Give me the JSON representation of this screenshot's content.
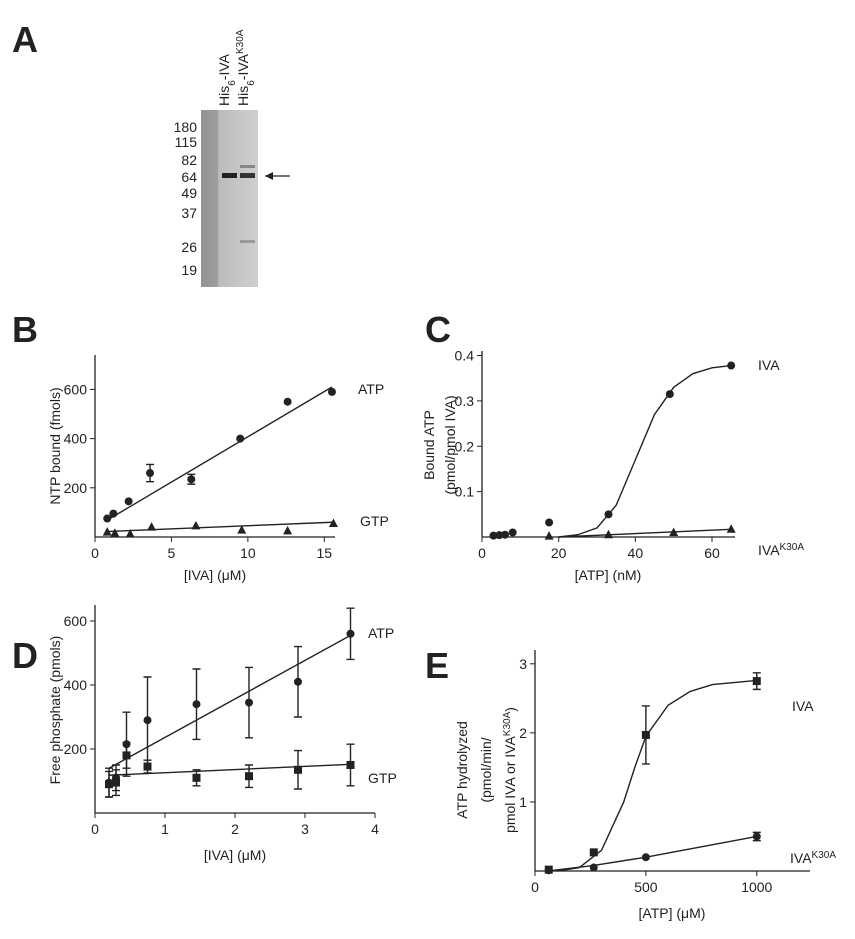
{
  "gel": {
    "label": "A",
    "lanes": [
      [
        "His",
        "6",
        "-IVA"
      ],
      [
        "His",
        "6",
        "-IVA",
        "K30A"
      ]
    ],
    "markers": [
      180,
      115,
      82,
      64,
      49,
      37,
      26,
      19
    ]
  },
  "chart_data": [
    {
      "type": "scatter",
      "panel": "B",
      "xlabel": "[IVA] (μM)",
      "ylabel": [
        [
          {
            "text": "NTP bound (fmols)"
          }
        ]
      ],
      "xlim": [
        0,
        15.7
      ],
      "ylim": [
        0,
        740
      ],
      "xticks": [
        0,
        5,
        10,
        15
      ],
      "yticks": [
        200,
        400,
        600
      ],
      "series": [
        {
          "name": "ATP",
          "marker": "circle",
          "color": "#222",
          "x": [
            0.8,
            1.2,
            2.2,
            3.6,
            6.3,
            9.5,
            12.6,
            15.5
          ],
          "values": [
            75,
            95,
            145,
            260,
            235,
            400,
            550,
            590
          ],
          "errors": [
            null,
            null,
            null,
            35,
            20,
            null,
            null,
            null
          ],
          "fit": {
            "x": [
              0.7,
              15.5
            ],
            "y": [
              65,
              610
            ]
          }
        },
        {
          "name": "GTP",
          "marker": "triangle",
          "color": "#222",
          "x": [
            0.8,
            1.3,
            2.3,
            3.7,
            6.6,
            9.6,
            12.6,
            15.6
          ],
          "values": [
            20,
            15,
            12,
            40,
            45,
            28,
            25,
            55
          ],
          "errors": [
            null,
            null,
            null,
            null,
            null,
            null,
            null,
            null
          ],
          "fit": {
            "x": [
              0.7,
              15.5
            ],
            "y": [
              22,
              60
            ]
          }
        }
      ]
    },
    {
      "type": "scatter",
      "panel": "C",
      "xlabel": "[ATP] (nM)",
      "ylabel": [
        [
          {
            "text": "Bound ATP"
          }
        ],
        [
          {
            "text": "(pmol/pmol IVA)"
          }
        ]
      ],
      "xlim": [
        0,
        66
      ],
      "ylim": [
        0,
        0.41
      ],
      "xticks": [
        0,
        20,
        40,
        60
      ],
      "yticks": [
        0.1,
        0.2,
        0.3,
        0.4
      ],
      "series": [
        {
          "name": "IVA",
          "marker": "circle",
          "color": "#222",
          "x": [
            3,
            4.5,
            6,
            8,
            17.5,
            33,
            49,
            65
          ],
          "values": [
            0.003,
            0.004,
            0.005,
            0.01,
            0.032,
            0.05,
            0.315,
            0.378
          ],
          "errors": [
            null,
            null,
            null,
            null,
            null,
            null,
            null,
            null
          ],
          "fit": {
            "x": [
              20,
              25,
              30,
              35,
              40,
              45,
              50,
              55,
              60,
              65
            ],
            "y": [
              0,
              0.005,
              0.02,
              0.07,
              0.17,
              0.27,
              0.33,
              0.36,
              0.373,
              0.378
            ]
          }
        },
        {
          "name": "IVA",
          "name_sup": "K30A",
          "marker": "triangle",
          "color": "#222",
          "x": [
            17.5,
            33,
            50,
            65
          ],
          "values": [
            0.002,
            0.005,
            0.01,
            0.017
          ],
          "errors": [
            null,
            null,
            null,
            null
          ],
          "fit": {
            "x": [
              20,
              65
            ],
            "y": [
              0,
              0.017
            ]
          }
        }
      ]
    },
    {
      "type": "scatter",
      "panel": "D",
      "xlabel": "[IVA] (μM)",
      "ylabel": [
        [
          {
            "text": "Free phosphate (pmols)"
          }
        ]
      ],
      "xlim": [
        0,
        4
      ],
      "ylim": [
        0,
        650
      ],
      "xticks": [
        0,
        1,
        2,
        3,
        4
      ],
      "yticks": [
        200,
        400,
        600
      ],
      "series": [
        {
          "name": "ATP",
          "marker": "circle",
          "color": "#222",
          "x": [
            0.2,
            0.3,
            0.45,
            0.75,
            1.45,
            2.2,
            2.9,
            3.65
          ],
          "values": [
            95,
            110,
            215,
            290,
            340,
            345,
            410,
            560
          ],
          "errors": [
            45,
            40,
            100,
            135,
            110,
            110,
            110,
            80
          ],
          "fit": {
            "x": [
              0.2,
              3.65
            ],
            "y": [
              140,
              555
            ]
          }
        },
        {
          "name": "GTP",
          "marker": "square",
          "color": "#222",
          "x": [
            0.2,
            0.3,
            0.45,
            0.75,
            1.45,
            2.2,
            2.9,
            3.65
          ],
          "values": [
            90,
            95,
            180,
            145,
            110,
            115,
            135,
            150
          ],
          "errors": [
            40,
            40,
            40,
            20,
            25,
            35,
            60,
            65
          ],
          "fit": {
            "x": [
              0.2,
              3.65
            ],
            "y": [
              118,
              152
            ]
          }
        }
      ]
    },
    {
      "type": "scatter",
      "panel": "E",
      "xlabel": "[ATP] (μM)",
      "ylabel": [
        [
          {
            "text": "ATP hydrolyzed"
          }
        ],
        [
          {
            "text": "(pmol/min/"
          }
        ],
        [
          {
            "text": "pmol IVA or IVA"
          },
          {
            "text": "K30A",
            "sup": true
          },
          {
            "text": ")"
          }
        ]
      ],
      "xlim": [
        0,
        1240
      ],
      "ylim": [
        0,
        3.2
      ],
      "xticks": [
        0,
        500,
        1000
      ],
      "yticks": [
        1,
        2,
        3
      ],
      "series": [
        {
          "name": "IVA",
          "marker": "square",
          "color": "#222",
          "x": [
            62,
            265,
            500,
            1000
          ],
          "values": [
            0.02,
            0.27,
            1.97,
            2.75
          ],
          "errors": [
            null,
            null,
            0.42,
            0.12
          ],
          "fit": {
            "x": [
              100,
              200,
              300,
              400,
              450,
              500,
              600,
              700,
              800,
              1000
            ],
            "y": [
              0,
              0.05,
              0.3,
              1.0,
              1.5,
              1.95,
              2.4,
              2.6,
              2.7,
              2.76
            ]
          }
        },
        {
          "name": "IVA",
          "name_sup": "K30A",
          "marker": "circle",
          "color": "#222",
          "x": [
            62,
            265,
            500,
            1000
          ],
          "values": [
            0.01,
            0.05,
            0.2,
            0.5
          ],
          "errors": [
            null,
            null,
            null,
            0.06
          ],
          "fit": {
            "x": [
              60,
              265,
              500,
              1000
            ],
            "y": [
              0,
              0.08,
              0.2,
              0.5
            ]
          }
        }
      ]
    }
  ]
}
